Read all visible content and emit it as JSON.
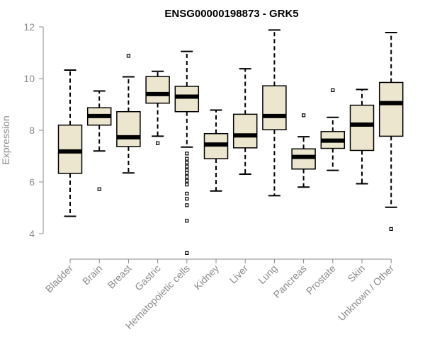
{
  "chart_data": {
    "type": "box",
    "title": "ENSG00000198873 - GRK5",
    "xlabel": "",
    "ylabel": "Expression",
    "ylim": [
      3.2,
      12.0
    ],
    "yticks": [
      4,
      6,
      8,
      10,
      12
    ],
    "grid": false,
    "box_fill": "#ede6cf",
    "categories": [
      "Bladder",
      "Brain",
      "Breast",
      "Gastric",
      "Hematopoietic cells",
      "Kidney",
      "Liver",
      "Lung",
      "Pancreas",
      "Prostate",
      "Skin",
      "Unknown / Other"
    ],
    "boxes": [
      {
        "category": "Bladder",
        "whisker_low": 4.67,
        "q1": 6.33,
        "median": 7.18,
        "q3": 8.2,
        "whisker_high": 10.33,
        "outliers": []
      },
      {
        "category": "Brain",
        "whisker_low": 7.2,
        "q1": 8.2,
        "median": 8.55,
        "q3": 8.87,
        "whisker_high": 9.52,
        "outliers": [
          5.72
        ]
      },
      {
        "category": "Breast",
        "whisker_low": 6.35,
        "q1": 7.37,
        "median": 7.73,
        "q3": 8.72,
        "whisker_high": 10.07,
        "outliers": [
          10.88
        ]
      },
      {
        "category": "Gastric",
        "whisker_low": 7.77,
        "q1": 9.05,
        "median": 9.4,
        "q3": 10.08,
        "whisker_high": 10.28,
        "outliers": [
          7.5
        ]
      },
      {
        "category": "Hematopoietic cells",
        "whisker_low": 7.35,
        "q1": 8.72,
        "median": 9.3,
        "q3": 9.7,
        "whisker_high": 11.05,
        "outliers": [
          7.1,
          6.9,
          6.75,
          6.6,
          6.45,
          6.35,
          6.2,
          6.05,
          5.9,
          5.55,
          5.35,
          5.1,
          4.5,
          3.25
        ]
      },
      {
        "category": "Kidney",
        "whisker_low": 5.65,
        "q1": 6.9,
        "median": 7.45,
        "q3": 7.87,
        "whisker_high": 8.78,
        "outliers": []
      },
      {
        "category": "Liver",
        "whisker_low": 6.3,
        "q1": 7.32,
        "median": 7.8,
        "q3": 8.62,
        "whisker_high": 10.38,
        "outliers": []
      },
      {
        "category": "Lung",
        "whisker_low": 5.47,
        "q1": 8.02,
        "median": 8.55,
        "q3": 9.72,
        "whisker_high": 11.88,
        "outliers": []
      },
      {
        "category": "Pancreas",
        "whisker_low": 5.8,
        "q1": 6.5,
        "median": 6.97,
        "q3": 7.28,
        "whisker_high": 7.75,
        "outliers": [
          8.58
        ]
      },
      {
        "category": "Prostate",
        "whisker_low": 6.45,
        "q1": 7.3,
        "median": 7.6,
        "q3": 7.95,
        "whisker_high": 8.5,
        "outliers": [
          9.55
        ]
      },
      {
        "category": "Skin",
        "whisker_low": 5.93,
        "q1": 7.22,
        "median": 8.22,
        "q3": 8.97,
        "whisker_high": 9.58,
        "outliers": []
      },
      {
        "category": "Unknown / Other",
        "whisker_low": 5.02,
        "q1": 7.77,
        "median": 9.05,
        "q3": 9.85,
        "whisker_high": 11.78,
        "outliers": [
          4.18
        ]
      }
    ]
  }
}
